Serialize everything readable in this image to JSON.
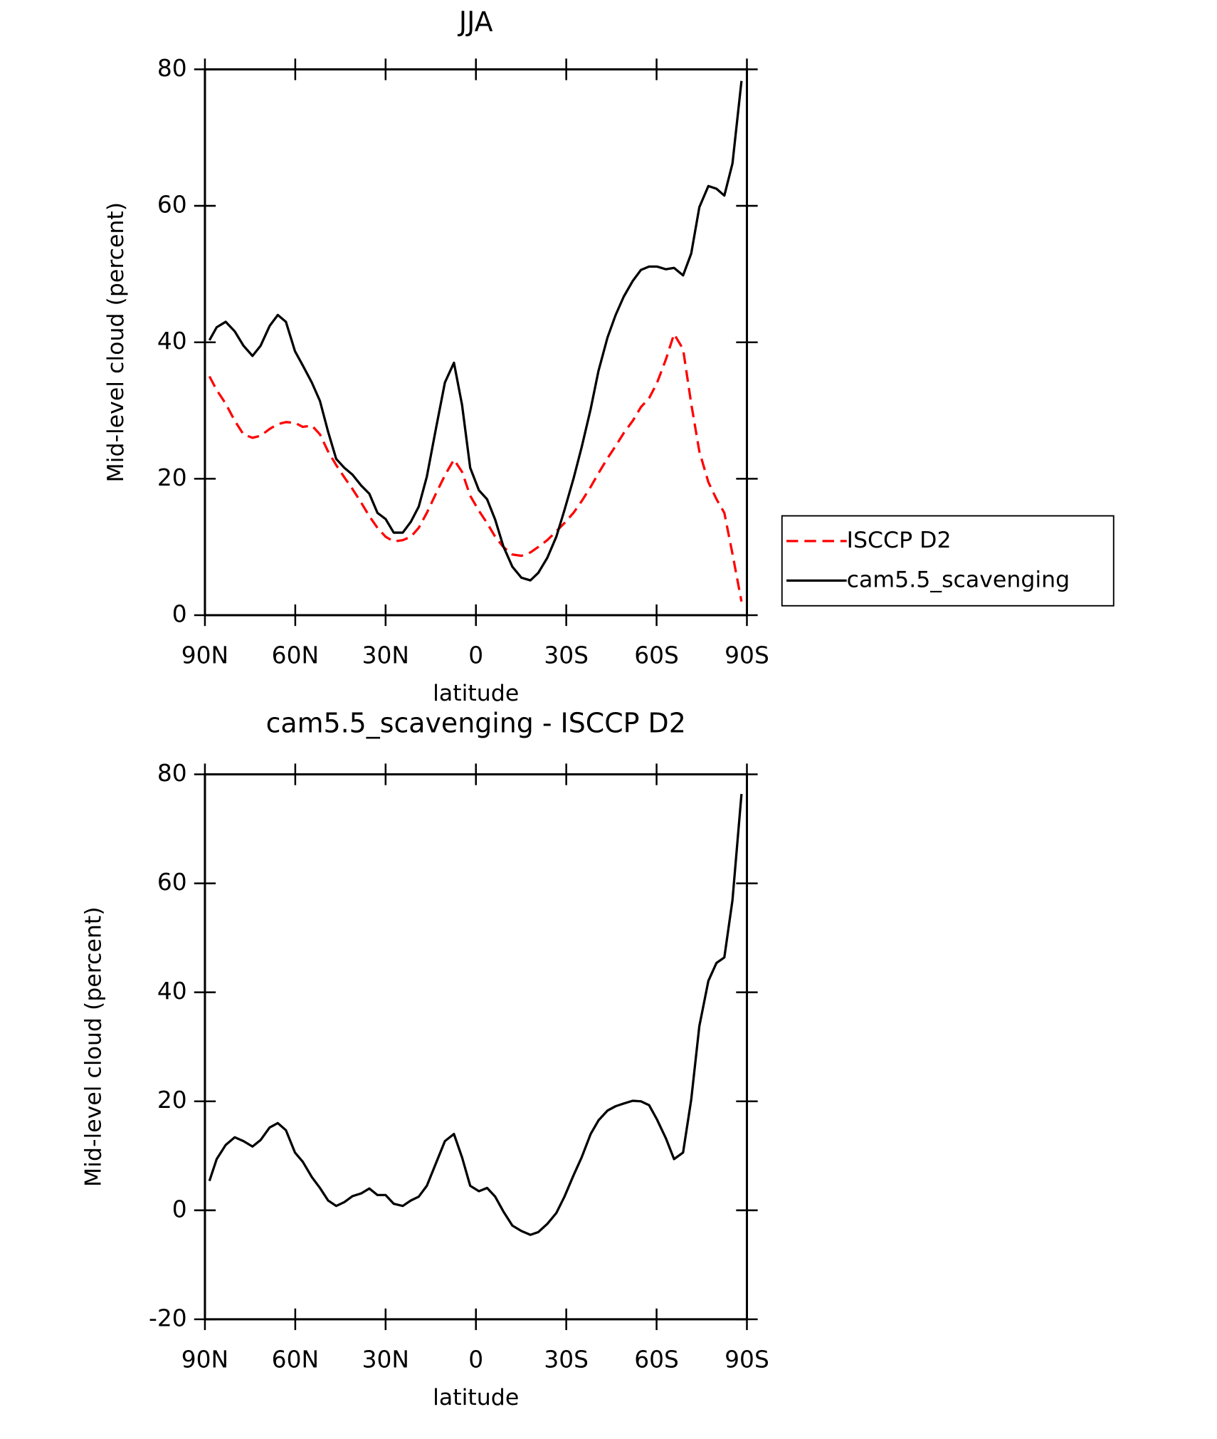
{
  "chart_data": [
    {
      "type": "line",
      "title": "JJA",
      "xlabel": "latitude",
      "ylabel": "Mid-level cloud (percent)",
      "x": [
        88.5,
        86.1,
        83.1,
        80.1,
        77.2,
        74.2,
        71.5,
        68.5,
        65.8,
        63.1,
        60.1,
        57.5,
        54.5,
        51.8,
        49.1,
        46.4,
        43.7,
        41.0,
        38.1,
        35.4,
        32.7,
        30.0,
        27.3,
        24.3,
        21.6,
        19.0,
        16.3,
        13.3,
        10.3,
        7.3,
        4.6,
        1.9,
        -1.0,
        -3.7,
        -6.4,
        -9.1,
        -12.1,
        -15.1,
        -18.1,
        -20.7,
        -23.7,
        -26.7,
        -29.4,
        -32.4,
        -35.1,
        -38.1,
        -40.7,
        -43.7,
        -46.4,
        -49.1,
        -52.1,
        -54.8,
        -57.5,
        -60.1,
        -63.1,
        -65.8,
        -68.8,
        -71.5,
        -74.2,
        -77.2,
        -79.9,
        -82.5,
        -85.2,
        -88.2
      ],
      "series": [
        {
          "name": "ISCCP D2",
          "color": "#ff0000",
          "dashed": true,
          "values": [
            35,
            33,
            31,
            28.5,
            26.5,
            26,
            26.3,
            27.3,
            28,
            28.3,
            28.2,
            27.6,
            27.8,
            26.5,
            24,
            22,
            20.2,
            18.5,
            16.5,
            14.5,
            12.8,
            11.5,
            10.8,
            11,
            11.5,
            12.8,
            15,
            17.8,
            20.5,
            22.8,
            21,
            17.5,
            15.3,
            13.5,
            11.5,
            10,
            8.9,
            8.7,
            9.2,
            10,
            11,
            12.3,
            13.5,
            15,
            16.7,
            18.8,
            20.8,
            23,
            24.8,
            26.7,
            28.5,
            30.5,
            31.8,
            34,
            37.5,
            41.2,
            39,
            31,
            24,
            19.5,
            17,
            15,
            9,
            2
          ]
        },
        {
          "name": "cam5.5_scavenging",
          "color": "#000000",
          "dashed": false,
          "values": [
            40.3,
            42.2,
            43.0,
            41.6,
            39.5,
            38.0,
            39.5,
            42.4,
            44.0,
            43.0,
            38.7,
            36.6,
            34.1,
            31.4,
            26.9,
            22.9,
            21.6,
            20.6,
            19.0,
            17.8,
            15.0,
            14.1,
            12.1,
            12.1,
            13.7,
            15.9,
            20.3,
            27.3,
            34.1,
            37.0,
            30.8,
            21.6,
            18.3,
            17.0,
            14.0,
            10.1,
            7.1,
            5.5,
            5.1,
            6.2,
            8.4,
            11.5,
            15.4,
            20.0,
            24.6,
            30.2,
            35.8,
            40.7,
            44.0,
            46.7,
            49.0,
            50.6,
            51.1,
            51.1,
            50.7,
            50.9,
            49.8,
            53.0,
            59.8,
            62.9,
            62.5,
            61.5,
            66.2,
            78.3
          ]
        }
      ],
      "xlim": [
        90,
        -90
      ],
      "xticks": [
        {
          "value": 90,
          "label": "90N"
        },
        {
          "value": 60,
          "label": "60N"
        },
        {
          "value": 30,
          "label": "30N"
        },
        0,
        {
          "value": -30,
          "label": "30S"
        },
        {
          "value": -60,
          "label": "60S"
        },
        {
          "value": -90,
          "label": "90S"
        }
      ],
      "ylim": [
        0,
        80
      ],
      "yticks": [
        0,
        20,
        40,
        60,
        80
      ],
      "legend": "right"
    },
    {
      "type": "line",
      "title": "cam5.5_scavenging - ISCCP D2",
      "xlabel": "latitude",
      "ylabel": "Mid-level cloud (percent)",
      "x": [
        88.5,
        86.1,
        83.1,
        80.1,
        77.2,
        74.2,
        71.5,
        68.5,
        65.8,
        63.1,
        60.1,
        57.5,
        54.5,
        51.8,
        49.1,
        46.4,
        43.7,
        41.0,
        38.1,
        35.4,
        32.7,
        30.0,
        27.3,
        24.3,
        21.6,
        19.0,
        16.3,
        13.3,
        10.3,
        7.3,
        4.6,
        1.9,
        -1.0,
        -3.7,
        -6.4,
        -9.1,
        -12.1,
        -15.1,
        -18.1,
        -20.7,
        -23.7,
        -26.7,
        -29.4,
        -32.4,
        -35.1,
        -38.1,
        -40.7,
        -43.7,
        -46.4,
        -49.1,
        -52.1,
        -54.8,
        -57.5,
        -60.1,
        -63.1,
        -65.8,
        -68.8,
        -71.5,
        -74.2,
        -77.2,
        -79.9,
        -82.5,
        -85.2,
        -88.2
      ],
      "series": [
        {
          "color": "#000000",
          "dashed": false,
          "values": [
            5.4,
            9.4,
            12.0,
            13.4,
            12.7,
            11.7,
            12.9,
            15.2,
            16.0,
            14.7,
            10.6,
            8.9,
            6.1,
            4.1,
            1.8,
            0.8,
            1.5,
            2.6,
            3.1,
            4.0,
            2.8,
            2.8,
            1.2,
            0.8,
            1.8,
            2.5,
            4.5,
            8.6,
            12.7,
            14.0,
            9.7,
            4.5,
            3.5,
            4.1,
            2.5,
            -0.2,
            -2.8,
            -3.8,
            -4.5,
            -4.0,
            -2.5,
            -0.5,
            2.5,
            6.4,
            9.7,
            14.0,
            16.5,
            18.3,
            19.1,
            19.6,
            20.1,
            20.0,
            19.3,
            16.7,
            13.2,
            9.4,
            10.6,
            20.3,
            33.8,
            42.1,
            45.4,
            46.4,
            56.9,
            76.4
          ]
        }
      ],
      "xlim": [
        90,
        -90
      ],
      "xticks": [
        {
          "value": 90,
          "label": "90N"
        },
        {
          "value": 60,
          "label": "60N"
        },
        {
          "value": 30,
          "label": "30N"
        },
        0,
        {
          "value": -30,
          "label": "30S"
        },
        {
          "value": -60,
          "label": "60S"
        },
        {
          "value": -90,
          "label": "90S"
        }
      ],
      "ylim": [
        -20,
        80
      ],
      "yticks": [
        -20,
        0,
        20,
        40,
        60,
        80
      ]
    }
  ]
}
